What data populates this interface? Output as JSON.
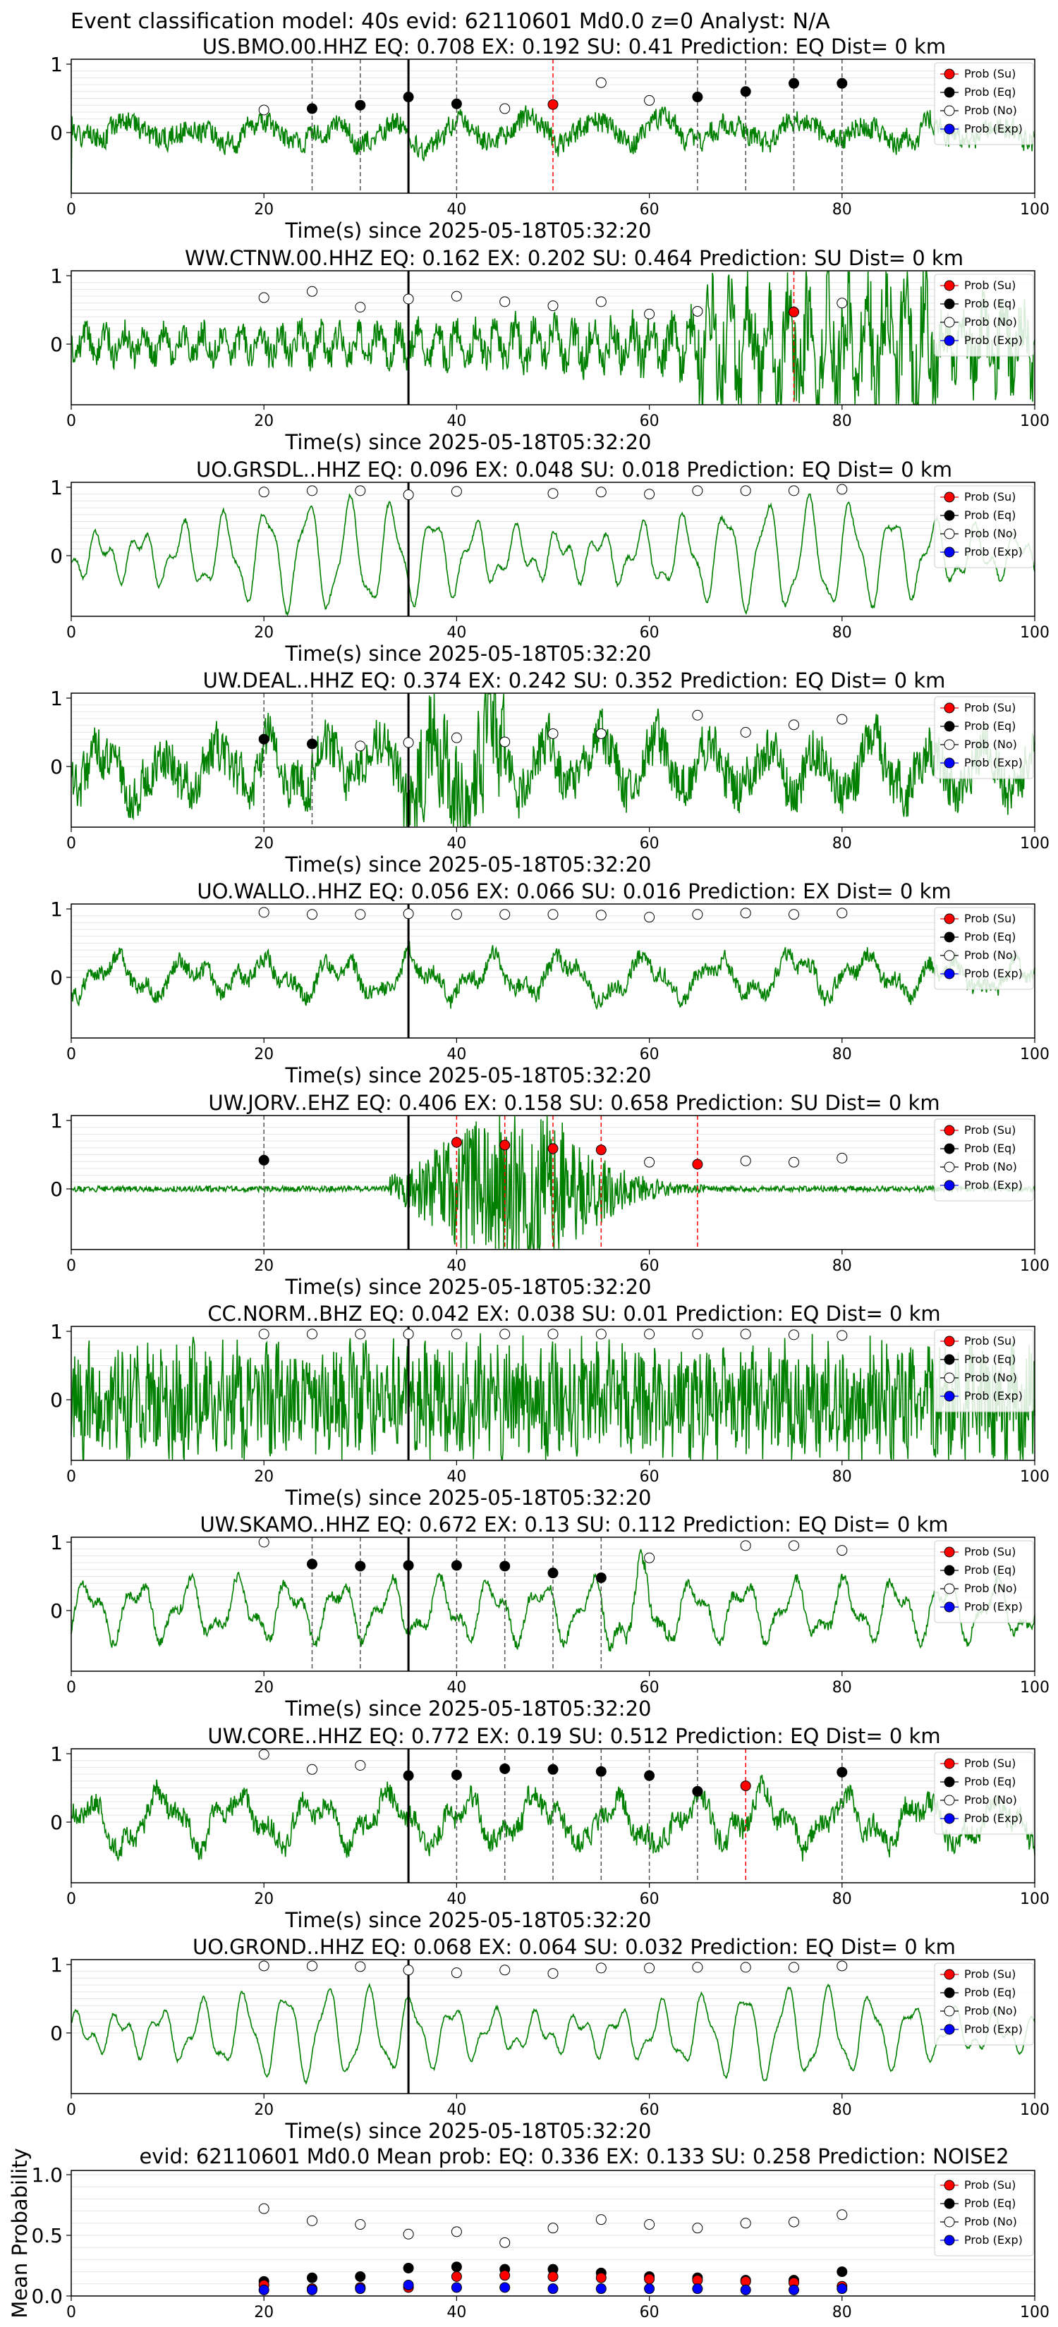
{
  "figure": {
    "suptitle": "Event classification model: 40s evid: 62110601 Md0.0 z=0 Analyst: N/A"
  },
  "legend": [
    "Prob (Su)",
    "Prob (Eq)",
    "Prob (No)",
    "Prob (Exp)"
  ],
  "colors": {
    "su": "#ff0000",
    "eq": "#000000",
    "no": "#ffffff",
    "exp": "#0000ff",
    "trace": "#008000",
    "dashed_eq": "#555555",
    "dashed_su": "#ff0000"
  },
  "xlabel": "Time(s) since 2025-05-18T05:32:20",
  "xticks": [
    0,
    20,
    40,
    60,
    80,
    100
  ],
  "chart_data": [
    {
      "type": "line",
      "station": "US.BMO.00.HHZ",
      "title": "US.BMO.00.HHZ   EQ: 0.708  EX: 0.192  SU: 0.41   Prediction: EQ    Dist= 0 km",
      "xlim": [
        0,
        100
      ],
      "yticks": [
        0,
        1
      ],
      "trace": {
        "style": "noisy",
        "seed": 1,
        "amp": 0.3
      },
      "origin_marker": 35,
      "eq": [
        [
          25,
          0.35
        ],
        [
          30,
          0.4
        ],
        [
          35,
          0.52
        ],
        [
          40,
          0.42
        ],
        [
          65,
          0.52
        ],
        [
          70,
          0.6
        ],
        [
          75,
          0.72
        ],
        [
          80,
          0.72
        ]
      ],
      "su": [
        [
          50,
          0.41
        ]
      ],
      "no": [
        [
          20,
          0.33
        ],
        [
          45,
          0.35
        ],
        [
          55,
          0.73
        ],
        [
          60,
          0.47
        ]
      ],
      "eq_lines": [
        25,
        30,
        40,
        65,
        70,
        75,
        80
      ],
      "su_lines": [
        50
      ]
    },
    {
      "type": "line",
      "station": "WW.CTNW.00.HHZ",
      "title": "WW.CTNW.00.HHZ   EQ: 0.162  EX: 0.202  SU: 0.464   Prediction: SU    Dist= 0 km",
      "xlim": [
        0,
        100
      ],
      "yticks": [
        0,
        1
      ],
      "trace": {
        "style": "growing",
        "seed": 2,
        "amp": 0.45
      },
      "origin_marker": 35,
      "eq": [],
      "su": [
        [
          75,
          0.47
        ]
      ],
      "no": [
        [
          20,
          0.68
        ],
        [
          25,
          0.77
        ],
        [
          30,
          0.54
        ],
        [
          35,
          0.66
        ],
        [
          40,
          0.7
        ],
        [
          45,
          0.62
        ],
        [
          50,
          0.56
        ],
        [
          55,
          0.62
        ],
        [
          60,
          0.44
        ],
        [
          65,
          0.48
        ],
        [
          80,
          0.6
        ]
      ],
      "eq_lines": [],
      "su_lines": [
        75
      ]
    },
    {
      "type": "line",
      "station": "UO.GRSDL..HHZ",
      "title": "UO.GRSDL..HHZ   EQ: 0.096  EX: 0.048  SU: 0.018   Prediction: EQ    Dist= 0 km",
      "xlim": [
        0,
        100
      ],
      "yticks": [
        0,
        1
      ],
      "trace": {
        "style": "smooth",
        "seed": 3,
        "amp": 0.55
      },
      "origin_marker": 35,
      "eq": [],
      "su": [],
      "no": [
        [
          20,
          0.93
        ],
        [
          25,
          0.95
        ],
        [
          30,
          0.95
        ],
        [
          35,
          0.89
        ],
        [
          40,
          0.94
        ],
        [
          50,
          0.91
        ],
        [
          55,
          0.93
        ],
        [
          60,
          0.9
        ],
        [
          65,
          0.95
        ],
        [
          70,
          0.95
        ],
        [
          75,
          0.95
        ],
        [
          80,
          0.97
        ]
      ],
      "eq_lines": [],
      "su_lines": []
    },
    {
      "type": "line",
      "station": "UW.DEAL..HHZ",
      "title": "UW.DEAL..HHZ   EQ: 0.374  EX: 0.242  SU: 0.352   Prediction: EQ    Dist= 0 km",
      "xlim": [
        0,
        100
      ],
      "yticks": [
        0,
        1
      ],
      "trace": {
        "style": "burst",
        "seed": 4,
        "amp": 0.5
      },
      "origin_marker": 35,
      "eq": [
        [
          20,
          0.4
        ],
        [
          25,
          0.33
        ]
      ],
      "su": [],
      "no": [
        [
          30,
          0.3
        ],
        [
          35,
          0.35
        ],
        [
          40,
          0.42
        ],
        [
          45,
          0.36
        ],
        [
          50,
          0.48
        ],
        [
          55,
          0.48
        ],
        [
          65,
          0.75
        ],
        [
          70,
          0.5
        ],
        [
          75,
          0.61
        ],
        [
          80,
          0.69
        ]
      ],
      "eq_lines": [
        20,
        25
      ],
      "su_lines": []
    },
    {
      "type": "line",
      "station": "UO.WALLO..HHZ",
      "title": "UO.WALLO..HHZ   EQ: 0.056  EX: 0.066  SU: 0.016   Prediction: EX    Dist= 0 km",
      "xlim": [
        0,
        100
      ],
      "yticks": [
        0,
        1
      ],
      "trace": {
        "style": "mixed",
        "seed": 5,
        "amp": 0.3
      },
      "origin_marker": 35,
      "eq": [],
      "su": [],
      "no": [
        [
          20,
          0.95
        ],
        [
          25,
          0.92
        ],
        [
          30,
          0.92
        ],
        [
          35,
          0.93
        ],
        [
          40,
          0.92
        ],
        [
          45,
          0.92
        ],
        [
          50,
          0.92
        ],
        [
          55,
          0.91
        ],
        [
          60,
          0.88
        ],
        [
          65,
          0.92
        ],
        [
          70,
          0.94
        ],
        [
          75,
          0.92
        ],
        [
          80,
          0.94
        ]
      ],
      "eq_lines": [],
      "su_lines": []
    },
    {
      "type": "line",
      "station": "UW.JORV..EHZ",
      "title": "UW.JORV..EHZ   EQ: 0.406  EX: 0.158  SU: 0.658   Prediction: SU    Dist= 0 km",
      "xlim": [
        0,
        100
      ],
      "yticks": [
        0,
        1
      ],
      "trace": {
        "style": "event",
        "seed": 6,
        "amp": 0.7
      },
      "origin_marker": 35,
      "eq": [
        [
          20,
          0.42
        ]
      ],
      "su": [
        [
          40,
          0.68
        ],
        [
          45,
          0.64
        ],
        [
          50,
          0.59
        ],
        [
          55,
          0.57
        ],
        [
          65,
          0.36
        ]
      ],
      "no": [
        [
          60,
          0.39
        ],
        [
          70,
          0.41
        ],
        [
          75,
          0.39
        ],
        [
          80,
          0.45
        ]
      ],
      "eq_lines": [
        20
      ],
      "su_lines": [
        40,
        45,
        50,
        55,
        65
      ]
    },
    {
      "type": "line",
      "station": "CC.NORM..BHZ",
      "title": "CC.NORM..BHZ   EQ: 0.042  EX: 0.038  SU: 0.01   Prediction: EQ    Dist= 0 km",
      "xlim": [
        0,
        100
      ],
      "yticks": [
        0,
        1
      ],
      "trace": {
        "style": "dense",
        "seed": 7,
        "amp": 0.6
      },
      "origin_marker": 35,
      "eq": [],
      "su": [],
      "no": [
        [
          20,
          0.96
        ],
        [
          25,
          0.96
        ],
        [
          30,
          0.96
        ],
        [
          35,
          0.96
        ],
        [
          40,
          0.96
        ],
        [
          45,
          0.96
        ],
        [
          50,
          0.96
        ],
        [
          55,
          0.96
        ],
        [
          60,
          0.96
        ],
        [
          65,
          0.96
        ],
        [
          70,
          0.96
        ],
        [
          75,
          0.95
        ],
        [
          80,
          0.94
        ]
      ],
      "eq_lines": [],
      "su_lines": []
    },
    {
      "type": "line",
      "station": "UW.SKAMO..HHZ",
      "title": "UW.SKAMO..HHZ   EQ: 0.672  EX: 0.13  SU: 0.112   Prediction: EQ    Dist= 0 km",
      "xlim": [
        0,
        100
      ],
      "yticks": [
        0,
        1
      ],
      "trace": {
        "style": "smoothnoisy",
        "seed": 8,
        "amp": 0.45
      },
      "origin_marker": 35,
      "eq": [
        [
          25,
          0.68
        ],
        [
          30,
          0.65
        ],
        [
          35,
          0.66
        ],
        [
          40,
          0.66
        ],
        [
          45,
          0.65
        ],
        [
          50,
          0.55
        ],
        [
          55,
          0.48
        ]
      ],
      "su": [],
      "no": [
        [
          20,
          1.0
        ],
        [
          60,
          0.77
        ],
        [
          70,
          0.95
        ],
        [
          75,
          0.95
        ],
        [
          80,
          0.88
        ]
      ],
      "eq_lines": [
        25,
        30,
        40,
        45,
        50,
        55
      ],
      "su_lines": []
    },
    {
      "type": "line",
      "station": "UW.CORE..HHZ",
      "title": "UW.CORE..HHZ   EQ: 0.772  EX: 0.19  SU: 0.512   Prediction: EQ    Dist= 0 km",
      "xlim": [
        0,
        100
      ],
      "yticks": [
        0,
        1
      ],
      "trace": {
        "style": "mixed",
        "seed": 9,
        "amp": 0.4
      },
      "origin_marker": 35,
      "eq": [
        [
          35,
          0.68
        ],
        [
          40,
          0.69
        ],
        [
          45,
          0.78
        ],
        [
          50,
          0.77
        ],
        [
          55,
          0.74
        ],
        [
          60,
          0.68
        ],
        [
          65,
          0.45
        ],
        [
          80,
          0.73
        ]
      ],
      "su": [
        [
          70,
          0.53
        ]
      ],
      "no": [
        [
          20,
          0.99
        ],
        [
          25,
          0.77
        ],
        [
          30,
          0.83
        ]
      ],
      "eq_lines": [
        40,
        45,
        50,
        55,
        60,
        65,
        80
      ],
      "su_lines": [
        70
      ]
    },
    {
      "type": "line",
      "station": "UO.GROND..HHZ",
      "title": "UO.GROND..HHZ   EQ: 0.068  EX: 0.064  SU: 0.032   Prediction: EQ    Dist= 0 km",
      "xlim": [
        0,
        100
      ],
      "yticks": [
        0,
        1
      ],
      "trace": {
        "style": "smooth",
        "seed": 10,
        "amp": 0.45
      },
      "origin_marker": 35,
      "eq": [],
      "su": [],
      "no": [
        [
          20,
          0.98
        ],
        [
          25,
          0.98
        ],
        [
          30,
          0.97
        ],
        [
          35,
          0.92
        ],
        [
          40,
          0.88
        ],
        [
          45,
          0.92
        ],
        [
          50,
          0.87
        ],
        [
          55,
          0.95
        ],
        [
          60,
          0.95
        ],
        [
          65,
          0.96
        ],
        [
          70,
          0.96
        ],
        [
          75,
          0.96
        ],
        [
          80,
          0.98
        ]
      ],
      "eq_lines": [],
      "su_lines": []
    },
    {
      "type": "scatter",
      "title": "evid: 62110601   Md0.0   Mean prob:   EQ: 0.336  EX: 0.133  SU: 0.258   Prediction: NOISE2",
      "ylabel": "Mean Probability",
      "xlim": [
        0,
        100
      ],
      "ylim": [
        0,
        1
      ],
      "yticks": [
        "0.0",
        "0.5",
        "1.0"
      ],
      "x": [
        20,
        25,
        30,
        35,
        40,
        45,
        50,
        55,
        60,
        65,
        70,
        75,
        80
      ],
      "series": [
        {
          "name": "Prob (No)",
          "values": [
            0.72,
            0.62,
            0.59,
            0.51,
            0.53,
            0.44,
            0.56,
            0.63,
            0.59,
            0.56,
            0.6,
            0.61,
            0.67
          ]
        },
        {
          "name": "Prob (Eq)",
          "values": [
            0.12,
            0.15,
            0.16,
            0.23,
            0.24,
            0.22,
            0.22,
            0.19,
            0.16,
            0.15,
            0.13,
            0.13,
            0.2
          ]
        },
        {
          "name": "Prob (Su)",
          "values": [
            0.09,
            0.06,
            0.07,
            0.07,
            0.16,
            0.17,
            0.16,
            0.15,
            0.14,
            0.13,
            0.12,
            0.11,
            0.08
          ]
        },
        {
          "name": "Prob (Exp)",
          "values": [
            0.05,
            0.05,
            0.06,
            0.09,
            0.07,
            0.07,
            0.06,
            0.06,
            0.06,
            0.06,
            0.05,
            0.05,
            0.06
          ]
        }
      ]
    }
  ]
}
